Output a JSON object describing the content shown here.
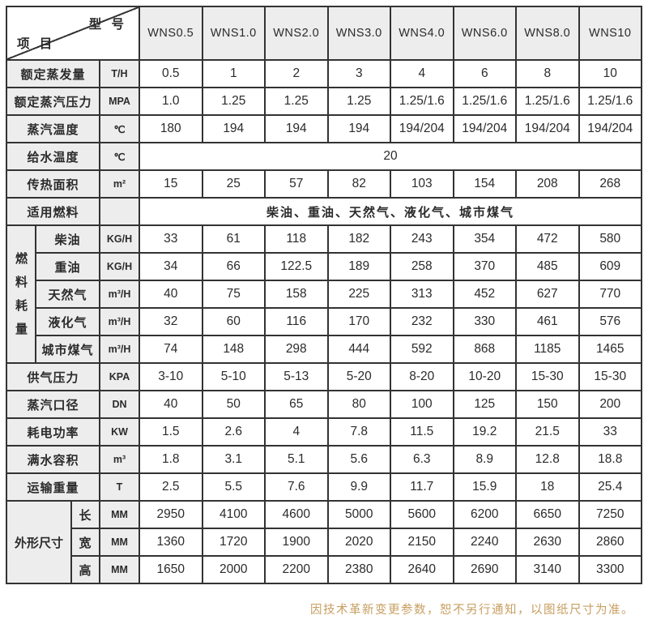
{
  "table": {
    "corner": {
      "top_label": "型 号",
      "bottom_label": "项 目"
    },
    "models": [
      "WNS0.5",
      "WNS1.0",
      "WNS2.0",
      "WNS3.0",
      "WNS4.0",
      "WNS6.0",
      "WNS8.0",
      "WNS10"
    ],
    "rows": [
      {
        "label": "额定蒸发量",
        "unit": "T/H",
        "values": [
          "0.5",
          "1",
          "2",
          "3",
          "4",
          "6",
          "8",
          "10"
        ]
      },
      {
        "label": "额定蒸汽压力",
        "unit": "MPA",
        "values": [
          "1.0",
          "1.25",
          "1.25",
          "1.25",
          "1.25/1.6",
          "1.25/1.6",
          "1.25/1.6",
          "1.25/1.6"
        ]
      },
      {
        "label": "蒸汽温度",
        "unit": "℃",
        "values": [
          "180",
          "194",
          "194",
          "194",
          "194/204",
          "194/204",
          "194/204",
          "194/204"
        ]
      },
      {
        "label": "给水温度",
        "unit": "℃",
        "merged_value": "20"
      },
      {
        "label": "传热面积",
        "unit": "m²",
        "values": [
          "15",
          "25",
          "57",
          "82",
          "103",
          "154",
          "208",
          "268"
        ]
      },
      {
        "label": "适用燃料",
        "unit": "",
        "merged_value": "柴油、重油、天然气、液化气、城市煤气"
      },
      {
        "group": "燃料耗量",
        "vertical": true,
        "group_colspan": 1,
        "sub_rows": [
          {
            "label": "柴油",
            "unit": "KG/H",
            "values": [
              "33",
              "61",
              "118",
              "182",
              "243",
              "354",
              "472",
              "580"
            ]
          },
          {
            "label": "重油",
            "unit": "KG/H",
            "values": [
              "34",
              "66",
              "122.5",
              "189",
              "258",
              "370",
              "485",
              "609"
            ]
          },
          {
            "label": "天然气",
            "unit": "m³/H",
            "values": [
              "40",
              "75",
              "158",
              "225",
              "313",
              "452",
              "627",
              "770"
            ]
          },
          {
            "label": "液化气",
            "unit": "m³/H",
            "values": [
              "32",
              "60",
              "116",
              "170",
              "232",
              "330",
              "461",
              "576"
            ]
          },
          {
            "label": "城市煤气",
            "unit": "m³/H",
            "values": [
              "74",
              "148",
              "298",
              "444",
              "592",
              "868",
              "1185",
              "1465"
            ]
          }
        ]
      },
      {
        "label": "供气压力",
        "unit": "KPA",
        "values": [
          "3-10",
          "5-10",
          "5-13",
          "5-20",
          "8-20",
          "10-20",
          "15-30",
          "15-30"
        ]
      },
      {
        "label": "蒸汽口径",
        "unit": "DN",
        "values": [
          "40",
          "50",
          "65",
          "80",
          "100",
          "125",
          "150",
          "200"
        ]
      },
      {
        "label": "耗电功率",
        "unit": "KW",
        "values": [
          "1.5",
          "2.6",
          "4",
          "7.8",
          "11.5",
          "19.2",
          "21.5",
          "33"
        ]
      },
      {
        "label": "满水容积",
        "unit": "m³",
        "values": [
          "1.8",
          "3.1",
          "5.1",
          "5.6",
          "6.3",
          "8.9",
          "12.8",
          "18.8"
        ]
      },
      {
        "label": "运输重量",
        "unit": "T",
        "values": [
          "2.5",
          "5.5",
          "7.6",
          "9.9",
          "11.7",
          "15.9",
          "18",
          "25.4"
        ]
      },
      {
        "group": "外形尺寸",
        "vertical": false,
        "group_colspan": 2,
        "sub_rows": [
          {
            "label": "长",
            "unit": "MM",
            "values": [
              "2950",
              "4100",
              "4600",
              "5000",
              "5600",
              "6200",
              "6650",
              "7250"
            ]
          },
          {
            "label": "宽",
            "unit": "MM",
            "values": [
              "1360",
              "1720",
              "1900",
              "2020",
              "2150",
              "2240",
              "2630",
              "2860"
            ]
          },
          {
            "label": "高",
            "unit": "MM",
            "values": [
              "1650",
              "2000",
              "2200",
              "2380",
              "2640",
              "2690",
              "3140",
              "3300"
            ]
          }
        ]
      }
    ]
  },
  "footer": {
    "note": "因技术革新变更参数，恕不另行通知，以图纸尺寸为准。"
  },
  "colors": {
    "border": "#333333",
    "header_bg": "#ededed",
    "cell_bg": "#ffffff",
    "text": "#2b2b2b",
    "note_text": "#c79e60"
  }
}
